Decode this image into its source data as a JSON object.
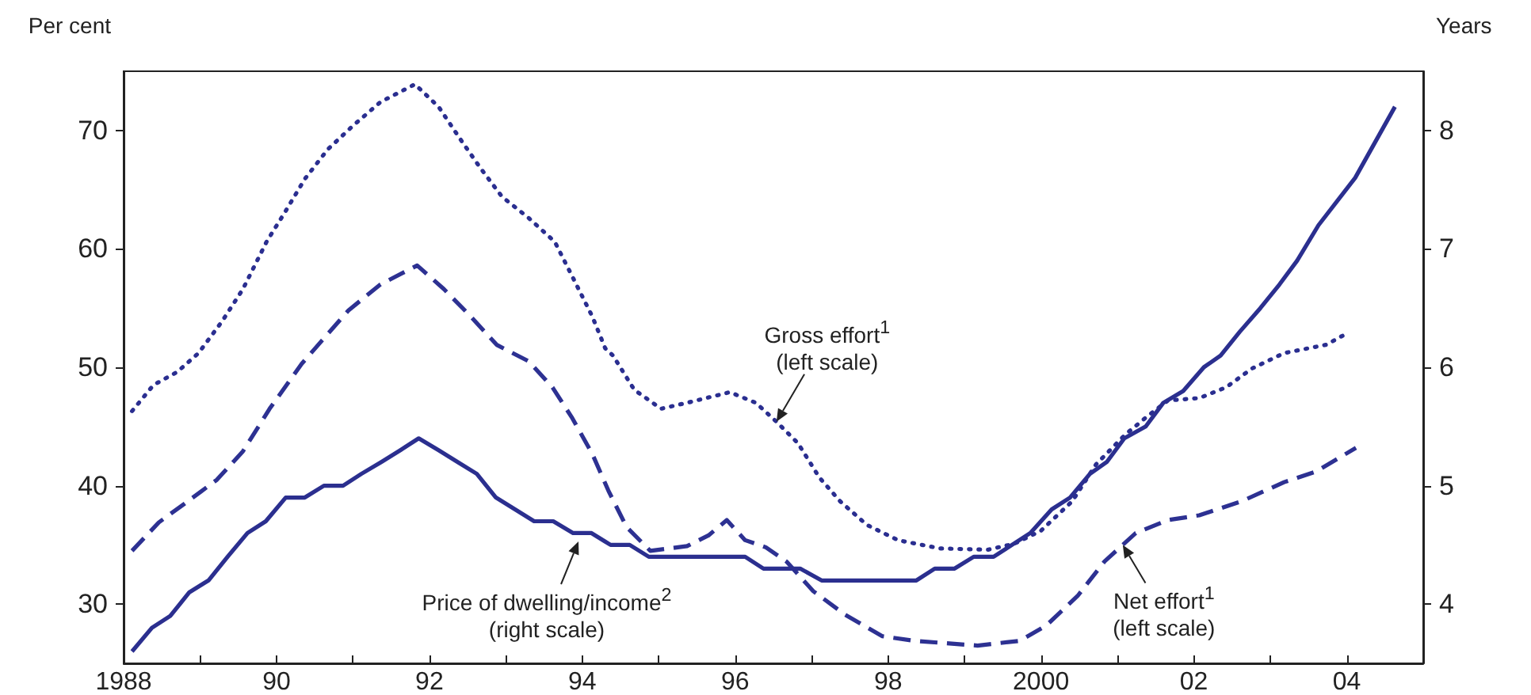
{
  "chart_data": {
    "type": "line",
    "ylabel": "Per cent",
    "y2label": "Years",
    "xlim": [
      1988,
      2005
    ],
    "xticks": [
      1988,
      {
        "value": 1989,
        "label": null
      },
      {
        "value": 1990,
        "label": "90"
      },
      {
        "value": 1991,
        "label": null
      },
      {
        "value": 1992,
        "label": "92"
      },
      {
        "value": 1993,
        "label": null
      },
      {
        "value": 1994,
        "label": "94"
      },
      {
        "value": 1995,
        "label": null
      },
      {
        "value": 1996,
        "label": "96"
      },
      {
        "value": 1997,
        "label": null
      },
      {
        "value": 1998,
        "label": "98"
      },
      {
        "value": 1999,
        "label": null
      },
      2000,
      {
        "value": 2001,
        "label": null
      },
      {
        "value": 2002,
        "label": "02"
      },
      {
        "value": 2003,
        "label": null
      },
      {
        "value": 2004,
        "label": "04"
      }
    ],
    "ylim": [
      25,
      75
    ],
    "yticks": [
      30,
      40,
      50,
      60,
      70
    ],
    "y2lim": [
      3.5,
      8.5
    ],
    "y2ticks": [
      4,
      5,
      6,
      7,
      8
    ],
    "grid": false,
    "marker": "none",
    "series": [
      {
        "color": "#2a2e90",
        "line_style": "dotted",
        "x": [
          1988.11,
          1988.39,
          1988.7,
          1988.98,
          1989.29,
          1989.56,
          1989.87,
          1990.12,
          1990.37,
          1990.67,
          1991.0,
          1991.36,
          1991.81,
          1992.12,
          1992.4,
          1992.67,
          1992.95,
          1993.3,
          1993.64,
          1993.89,
          1994.13,
          1994.3,
          1994.4,
          1994.68,
          1995.03,
          1995.37,
          1995.93,
          1996.27,
          1996.54,
          1996.82,
          1997.1,
          1997.37,
          1997.72,
          1998.13,
          1998.68,
          1999.31,
          1999.65,
          2000.0,
          2000.41,
          2000.72,
          2001.1,
          2001.38,
          2001.66,
          2002.07,
          2002.42,
          2002.76,
          2003.18,
          2003.73,
          2004.01
        ],
        "values": [
          46.3,
          48.5,
          49.6,
          51.2,
          53.9,
          56.6,
          60.6,
          63.2,
          65.9,
          68.4,
          70.4,
          72.4,
          73.9,
          72.0,
          69.3,
          66.8,
          64.4,
          62.6,
          60.6,
          57.4,
          54.3,
          51.6,
          51.0,
          48.1,
          46.5,
          47.0,
          47.9,
          47.0,
          45.4,
          43.6,
          40.7,
          38.7,
          36.7,
          35.4,
          34.7,
          34.6,
          35.1,
          36.2,
          38.7,
          41.8,
          44.3,
          45.8,
          47.2,
          47.4,
          48.3,
          49.9,
          51.2,
          51.9,
          52.9
        ]
      },
      {
        "color": "#2d3192",
        "line_style": "dashed",
        "x": [
          1988.11,
          1988.46,
          1988.8,
          1989.22,
          1989.56,
          1989.91,
          1990.33,
          1990.6,
          1990.94,
          1991.36,
          1991.84,
          1992.19,
          1992.54,
          1992.88,
          1993.3,
          1993.61,
          1993.86,
          1994.13,
          1994.34,
          1994.58,
          1994.89,
          1995.37,
          1995.65,
          1995.89,
          1996.13,
          1996.4,
          1996.67,
          1997.02,
          1997.44,
          1997.92,
          1998.34,
          1999.17,
          1999.72,
          2000.07,
          2000.48,
          2000.83,
          2001.24,
          2001.66,
          2002.07,
          2002.63,
          2003.18,
          2003.6,
          2004.12
        ],
        "values": [
          34.5,
          36.9,
          38.5,
          40.5,
          42.9,
          46.5,
          50.3,
          52.3,
          54.8,
          57.0,
          58.6,
          56.6,
          54.3,
          51.9,
          50.5,
          48.3,
          45.8,
          42.7,
          39.6,
          36.5,
          34.5,
          34.9,
          35.8,
          37.1,
          35.4,
          34.8,
          33.6,
          31.1,
          29.1,
          27.3,
          26.9,
          26.5,
          26.9,
          28.2,
          30.7,
          33.6,
          36.0,
          37.1,
          37.5,
          38.7,
          40.3,
          41.2,
          43.2
        ]
      },
      {
        "color": "#2b2f8f",
        "line_style": "solid",
        "axis": "y2",
        "x": [
          1988.11,
          1988.37,
          1988.61,
          1988.86,
          1989.11,
          1989.36,
          1989.62,
          1989.86,
          1990.12,
          1990.37,
          1990.62,
          1990.87,
          1991.11,
          1991.37,
          1991.62,
          1991.86,
          1992.12,
          1992.37,
          1992.62,
          1992.87,
          1993.12,
          1993.37,
          1993.62,
          1993.88,
          1994.12,
          1994.37,
          1994.62,
          1994.87,
          1996.13,
          1996.37,
          1996.85,
          1997.13,
          1998.37,
          1998.61,
          1998.87,
          1999.12,
          1999.38,
          1999.62,
          1999.86,
          2000.14,
          2000.38,
          2000.64,
          2000.86,
          2001.09,
          2001.37,
          2001.6,
          2001.86,
          2002.13,
          2002.35,
          2002.6,
          2002.87,
          2003.12,
          2003.35,
          2003.63,
          2004.11,
          2004.63
        ],
        "values": [
          3.6,
          3.8,
          3.9,
          4.1,
          4.2,
          4.4,
          4.6,
          4.7,
          4.9,
          4.9,
          5.0,
          5.0,
          5.1,
          5.2,
          5.3,
          5.4,
          5.3,
          5.2,
          5.1,
          4.9,
          4.8,
          4.7,
          4.7,
          4.6,
          4.6,
          4.5,
          4.5,
          4.4,
          4.4,
          4.3,
          4.3,
          4.2,
          4.2,
          4.3,
          4.3,
          4.4,
          4.4,
          4.5,
          4.6,
          4.8,
          4.9,
          5.1,
          5.2,
          5.4,
          5.5,
          5.7,
          5.8,
          6.0,
          6.1,
          6.3,
          6.5,
          6.7,
          6.9,
          7.2,
          7.6,
          8.2
        ]
      }
    ],
    "annotations": [
      {
        "text": "Gross effort$^{1}$\n(left scale)",
        "x": 1996.54,
        "y": 45.4
      },
      "Price of dwelling/income$^{2}$\n(right scale)",
      {
        "text": "Net effort$^{1}$\n(left scale)",
        "x": 2001.07,
        "y": 35.0
      }
    ]
  }
}
